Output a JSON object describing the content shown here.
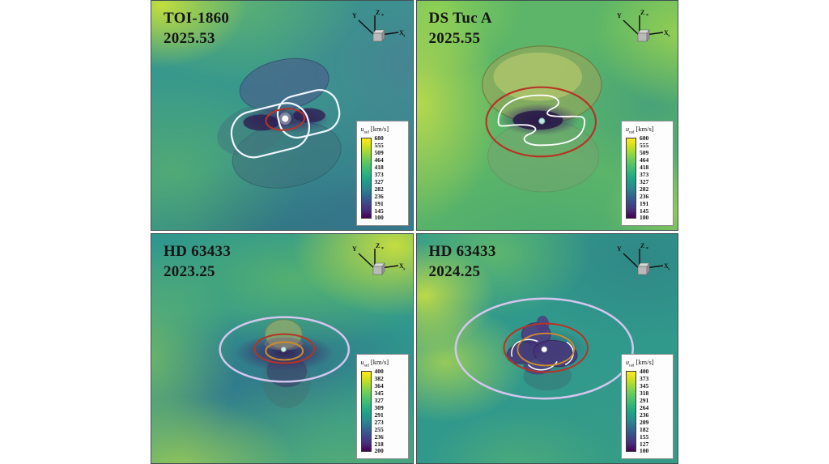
{
  "figure": {
    "axis_triad": {
      "x": "X",
      "y": "Y",
      "z": "Z",
      "sub": "*"
    },
    "colors": {
      "orbit_red": "#b63425",
      "orbit_orange": "#cf8b2d",
      "orbit_lavender": "#d3c6ee",
      "alfven_contour_white": "#f2f6ff",
      "viridis_max": "#fde725",
      "viridis_min": "#440154",
      "panel_border": "#40504f"
    },
    "panels": [
      {
        "title": "TOI-1860",
        "epoch": "2025.53",
        "colorbar": {
          "symbol": "u",
          "subscript": "rad",
          "units": "[km/s]",
          "ticks": [
            "600",
            "555",
            "509",
            "464",
            "418",
            "373",
            "327",
            "282",
            "236",
            "191",
            "145",
            "100"
          ]
        }
      },
      {
        "title": "DS Tuc A",
        "epoch": "2025.55",
        "colorbar": {
          "symbol": "u",
          "subscript": "rad",
          "units": "[km/s]",
          "ticks": [
            "600",
            "555",
            "509",
            "464",
            "418",
            "373",
            "327",
            "282",
            "236",
            "191",
            "145",
            "100"
          ]
        }
      },
      {
        "title": "HD 63433",
        "epoch": "2023.25",
        "colorbar": {
          "symbol": "u",
          "subscript": "rad",
          "units": "[km/s]",
          "ticks": [
            "400",
            "382",
            "364",
            "345",
            "327",
            "309",
            "291",
            "273",
            "255",
            "236",
            "218",
            "200"
          ]
        }
      },
      {
        "title": "HD 63433",
        "epoch": "2024.25",
        "colorbar": {
          "symbol": "u",
          "subscript": "rad",
          "units": "[km/s]",
          "ticks": [
            "400",
            "373",
            "345",
            "318",
            "291",
            "264",
            "236",
            "209",
            "182",
            "155",
            "127",
            "100"
          ]
        }
      }
    ]
  },
  "chart_data": [
    {
      "type": "heatmap",
      "title": "TOI-1860",
      "subtitle": "2025.53",
      "colorbar_label": "u_rad [km/s]",
      "colorbar_ticks": [
        600,
        555,
        509,
        464,
        418,
        373,
        327,
        282,
        236,
        191,
        145,
        100
      ],
      "colorbar_range": [
        100,
        600
      ],
      "palette": "viridis",
      "legend_position": "bottom-right colorbar box",
      "annotations": [
        "translucent Alfven-surface lobes",
        "white equatorial Alfven contour (two lobes)",
        "red planetary orbit ellipse",
        "white central star marker",
        "3D orientation triad (Y, Z*, X*)"
      ]
    },
    {
      "type": "heatmap",
      "title": "DS Tuc A",
      "subtitle": "2025.55",
      "colorbar_label": "u_rad [km/s]",
      "colorbar_ticks": [
        600,
        555,
        509,
        464,
        418,
        373,
        327,
        282,
        236,
        191,
        145,
        100
      ],
      "colorbar_range": [
        100,
        600
      ],
      "palette": "viridis",
      "legend_position": "bottom-right colorbar box",
      "annotations": [
        "large yellow-green Alfven-surface lobes above and below equator",
        "white wavy equatorial contour",
        "large red planetary orbit ellipse",
        "cyan-white central star marker",
        "3D orientation triad (Y, Z*, X*)"
      ]
    },
    {
      "type": "heatmap",
      "title": "HD 63433",
      "subtitle": "2023.25",
      "colorbar_label": "u_rad [km/s]",
      "colorbar_ticks": [
        400,
        382,
        364,
        345,
        327,
        309,
        291,
        273,
        255,
        236,
        218,
        200
      ],
      "colorbar_range": [
        200,
        400
      ],
      "palette": "viridis",
      "legend_position": "bottom-right colorbar box",
      "annotations": [
        "small green Alfven-surface blob",
        "outer lavender orbit ellipse",
        "middle red orbit ellipse",
        "inner orange orbit ellipse",
        "white central star marker",
        "3D orientation triad (Y, Z*, X*)"
      ]
    },
    {
      "type": "heatmap",
      "title": "HD 63433",
      "subtitle": "2024.25",
      "colorbar_label": "u_rad [km/s]",
      "colorbar_ticks": [
        400,
        373,
        345,
        318,
        291,
        264,
        236,
        209,
        182,
        155,
        127,
        100
      ],
      "colorbar_range": [
        100,
        400
      ],
      "palette": "viridis",
      "legend_position": "bottom-right colorbar box",
      "annotations": [
        "purple multi-lobed Alfven surface with white contours",
        "outer lavender orbit ellipse",
        "middle red orbit ellipse",
        "inner orange orbit ellipse",
        "white central star marker",
        "3D orientation triad (Y, Z*, X*)"
      ]
    }
  ]
}
